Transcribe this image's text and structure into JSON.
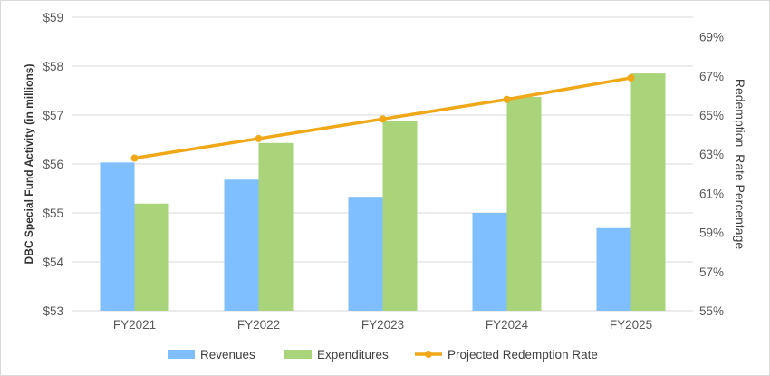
{
  "chart_data": {
    "type": "bar",
    "categories": [
      "FY2021",
      "FY2022",
      "FY2023",
      "FY2024",
      "FY2025"
    ],
    "series": [
      {
        "name": "Revenues",
        "kind": "bar",
        "axis": "left",
        "color": "#7fbfff",
        "values": [
          56.03,
          55.68,
          55.33,
          55.0,
          54.69
        ]
      },
      {
        "name": "Expenditures",
        "kind": "bar",
        "axis": "left",
        "color": "#aad47a",
        "values": [
          55.19,
          56.43,
          56.88,
          57.37,
          57.85
        ]
      },
      {
        "name": "Projected Redemption Rate",
        "kind": "line",
        "axis": "right",
        "color": "#f0a818",
        "values": [
          62.8,
          63.8,
          64.8,
          65.8,
          66.9
        ]
      }
    ],
    "ylabel": "DBC Special Fund Activity (in millions)",
    "y2label": "Redemption  Rate Percentage",
    "ylim": [
      53,
      59
    ],
    "y2lim": [
      55,
      70
    ],
    "yticks": [
      "$53",
      "$54",
      "$55",
      "$56",
      "$57",
      "$58",
      "$59"
    ],
    "y2ticks": [
      "55%",
      "57%",
      "59%",
      "61%",
      "63%",
      "65%",
      "67%",
      "69%"
    ],
    "grid": true,
    "legend": "bottom"
  }
}
